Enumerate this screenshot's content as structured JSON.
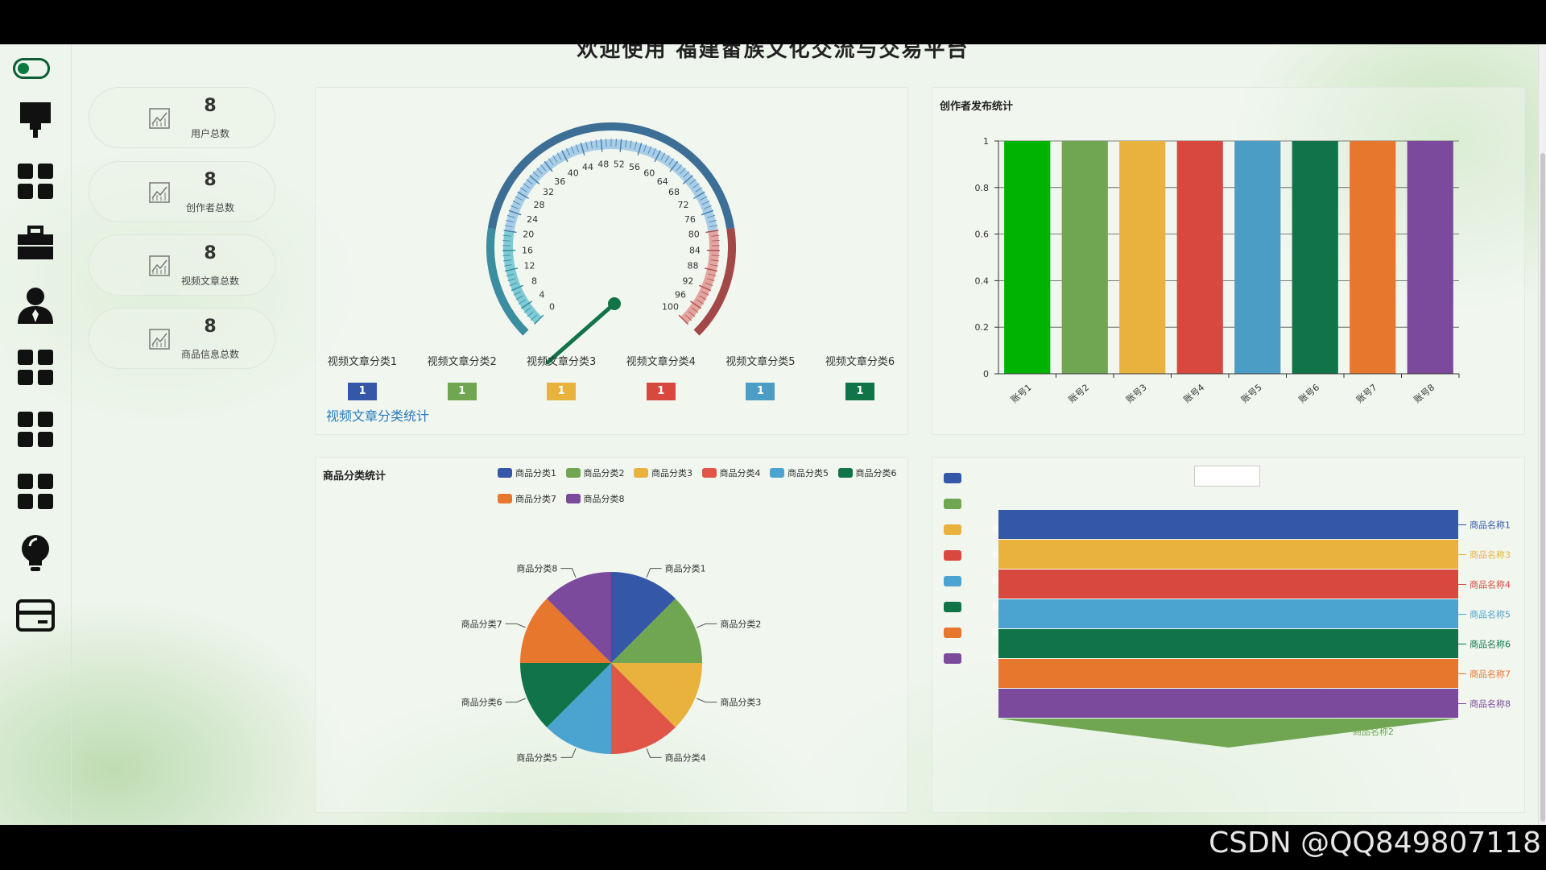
{
  "header": {
    "title": "欢迎使用 福建畲族文化交流与交易平台"
  },
  "sidebar": {
    "icons": [
      "toggle-icon",
      "brush-icon",
      "grid-icon",
      "briefcase-icon",
      "user-icon",
      "grid-icon",
      "grid-icon",
      "grid-icon",
      "lightbulb-icon",
      "card-icon"
    ]
  },
  "stats": [
    {
      "value": "8",
      "label": "用户总数"
    },
    {
      "value": "8",
      "label": "创作者总数"
    },
    {
      "value": "8",
      "label": "视频文章总数"
    },
    {
      "value": "8",
      "label": "商品信息总数"
    }
  ],
  "gauge": {
    "subtitle": "视频文章分类统计",
    "min": 0,
    "max": 100,
    "value": 1,
    "ticks": [
      "0",
      "4",
      "8",
      "12",
      "16",
      "20",
      "24",
      "28",
      "32",
      "36",
      "40",
      "44",
      "48",
      "52",
      "56",
      "60",
      "64",
      "68",
      "72",
      "76",
      "80",
      "84",
      "88",
      "92",
      "96",
      "100"
    ],
    "categories": [
      {
        "label": "视频文章分类1",
        "count": "1",
        "color": "#3458a7"
      },
      {
        "label": "视频文章分类2",
        "count": "1",
        "color": "#70a552"
      },
      {
        "label": "视频文章分类3",
        "count": "1",
        "color": "#e9b23d"
      },
      {
        "label": "视频文章分类4",
        "count": "1",
        "color": "#d9483f"
      },
      {
        "label": "视频文章分类5",
        "count": "1",
        "color": "#4b9dc6"
      },
      {
        "label": "视频文章分类6",
        "count": "1",
        "color": "#117448"
      }
    ]
  },
  "chart_data": [
    {
      "type": "bar",
      "title": "创作者发布统计",
      "categories": [
        "账号1",
        "账号2",
        "账号3",
        "账号4",
        "账号5",
        "账号6",
        "账号7",
        "账号8"
      ],
      "values": [
        1,
        1,
        1,
        1,
        1,
        1,
        1,
        1
      ],
      "colors": [
        "#00b300",
        "#70a552",
        "#e9b23d",
        "#d9483f",
        "#4b9dc6",
        "#117448",
        "#e8772e",
        "#7b4a9c"
      ],
      "ylim": [
        0,
        1
      ],
      "yticks": [
        "0",
        "0.2",
        "0.4",
        "0.6",
        "0.8",
        "1"
      ],
      "grid": true
    },
    {
      "type": "pie",
      "title": "商品分类统计",
      "categories": [
        "商品分类1",
        "商品分类2",
        "商品分类3",
        "商品分类4",
        "商品分类5",
        "商品分类6",
        "商品分类7",
        "商品分类8"
      ],
      "values": [
        1,
        1,
        1,
        1,
        1,
        1,
        1,
        1
      ],
      "colors": [
        "#3458a7",
        "#70a552",
        "#e9b23d",
        "#e05548",
        "#4ba4d0",
        "#117448",
        "#e8772e",
        "#7b4a9c"
      ],
      "legend": "top-right"
    },
    {
      "type": "funnel",
      "categories": [
        "商品名称1",
        "商品名称3",
        "商品名称4",
        "商品名称5",
        "商品名称6",
        "商品名称7",
        "商品名称8",
        "商品名称2"
      ],
      "colors": [
        "#3458a7",
        "#e9b23d",
        "#d9483f",
        "#4ba4d0",
        "#117448",
        "#e8772e",
        "#7b4a9c",
        "#70a552"
      ],
      "legend_colors": [
        "#3458a7",
        "#70a552",
        "#e9b23d",
        "#d9483f",
        "#4ba4d0",
        "#117448",
        "#e8772e",
        "#7b4a9c"
      ],
      "legend_labels": [
        "",
        "",
        "称3",
        "称4",
        "称5",
        "称6",
        "称7",
        "称8"
      ],
      "legend": "left"
    }
  ],
  "watermark": "CSDN @QQ849807118"
}
